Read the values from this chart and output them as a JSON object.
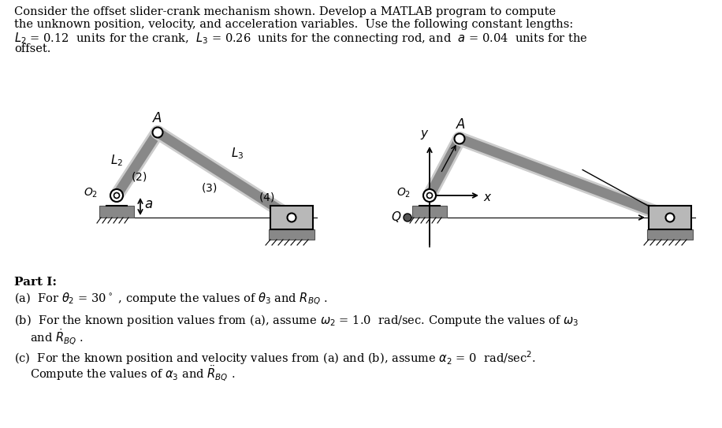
{
  "background_color": "#ffffff",
  "title_lines": [
    "Consider the offset slider-crank mechanism shown. Develop a MATLAB program to compute",
    "the unknown position, velocity, and acceleration variables.  Use the following constant lengths:",
    "$L_2$ = 0.12  units for the crank,  $L_3$ = 0.26  units for the connecting rod, and  $a$ = 0.04  units for the",
    "offset."
  ],
  "part_header": "Part I:",
  "part_a": "(a)  For $\\theta_2$ = 30$^\\circ$ , compute the values of $\\theta_3$ and $R_{BQ}$ .",
  "part_b_1": "(b)  For the known position values from (a), assume $\\omega_2$ = 1.0  rad/sec. Compute the values of $\\omega_3$",
  "part_b_2": "and $\\dot{R}_{BQ}$ .",
  "part_c_1": "(c)  For the known position and velocity values from (a) and (b), assume $\\alpha_2$ = 0  rad/sec$^2$.",
  "part_c_2": "Compute the values of $\\alpha_3$ and $\\ddot{R}_{BQ}$ .",
  "gray_dark": "#555555",
  "gray_light": "#aaaaaa",
  "gray_ground": "#888888",
  "gray_slider": "#b0b0b0"
}
